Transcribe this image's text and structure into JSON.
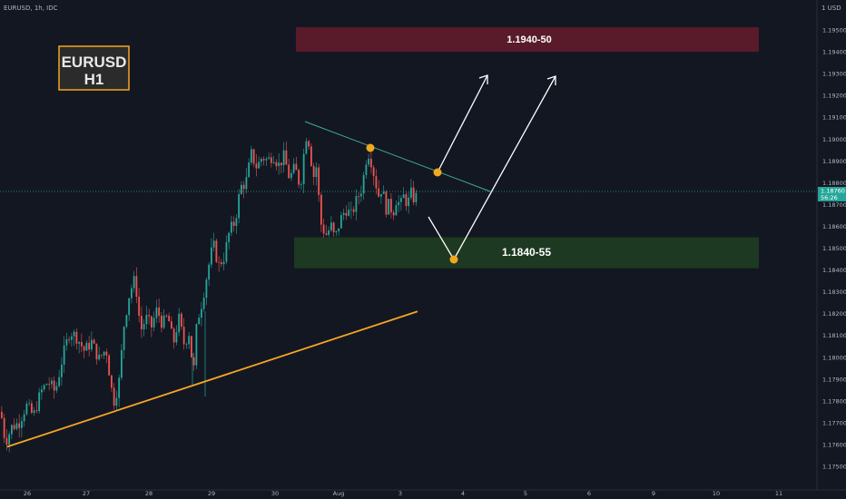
{
  "header": {
    "symbol_line": "EURUSD, 1h, IDC",
    "currency": "1 USD"
  },
  "title_box": {
    "line1": "EURUSD",
    "line2": "H1"
  },
  "colors": {
    "background": "#131722",
    "up_candle": "#26a69a",
    "down_candle": "#ef5350",
    "resistance_zone": "#5d1a2b",
    "support_zone": "#1e3b22",
    "trendline_orange": "#f5a623",
    "trendline_teal": "#3fae8e",
    "marker": "#f0a81c",
    "arrow": "#ffffff",
    "price_tag": "#26a69a"
  },
  "chart_data": {
    "type": "candlestick",
    "symbol": "EURUSD",
    "timeframe": "1h",
    "source": "IDC",
    "x_tick_labels": [
      "26",
      "27",
      "28",
      "29",
      "30",
      "Aug",
      "3",
      "4",
      "5",
      "6",
      "9",
      "10",
      "11"
    ],
    "y_tick_labels": [
      "1.19500",
      "1.19400",
      "1.19300",
      "1.19200",
      "1.19100",
      "1.19000",
      "1.18900",
      "1.18800",
      "1.18700",
      "1.18600",
      "1.18500",
      "1.18400",
      "1.18300",
      "1.18200",
      "1.18100",
      "1.18000",
      "1.17900",
      "1.17800",
      "1.17700",
      "1.17600",
      "1.17500"
    ],
    "ylim": [
      1.1744,
      1.1963
    ],
    "current_price": {
      "value": "1.18760",
      "countdown": "56:26"
    },
    "zones": [
      {
        "label": "1.1940-50",
        "low": 1.194,
        "high": 1.195,
        "type": "resistance"
      },
      {
        "label": "1.1840-55",
        "low": 1.1842,
        "high": 1.1855,
        "type": "support"
      }
    ],
    "candle_path": [
      [
        0,
        1.1775
      ],
      [
        5,
        1.1761
      ],
      [
        12,
        1.1768
      ],
      [
        20,
        1.177
      ],
      [
        28,
        1.1778
      ],
      [
        36,
        1.1773
      ],
      [
        44,
        1.1784
      ],
      [
        52,
        1.1789
      ],
      [
        60,
        1.1784
      ],
      [
        68,
        1.18
      ],
      [
        76,
        1.1812
      ],
      [
        84,
        1.1809
      ],
      [
        92,
        1.1803
      ],
      [
        100,
        1.1807
      ],
      [
        108,
        1.1799
      ],
      [
        116,
        1.1804
      ],
      [
        124,
        1.1779
      ],
      [
        130,
        1.1788
      ],
      [
        136,
        1.1816
      ],
      [
        142,
        1.183
      ],
      [
        148,
        1.1836
      ],
      [
        154,
        1.1812
      ],
      [
        160,
        1.1818
      ],
      [
        166,
        1.1814
      ],
      [
        172,
        1.1822
      ],
      [
        178,
        1.1815
      ],
      [
        184,
        1.1819
      ],
      [
        190,
        1.1806
      ],
      [
        196,
        1.1818
      ],
      [
        202,
        1.1806
      ],
      [
        208,
        1.1812
      ],
      [
        212,
        1.179
      ],
      [
        216,
        1.1816
      ],
      [
        222,
        1.1826
      ],
      [
        228,
        1.184
      ],
      [
        234,
        1.1852
      ],
      [
        240,
        1.1842
      ],
      [
        246,
        1.1846
      ],
      [
        252,
        1.1858
      ],
      [
        258,
        1.1862
      ],
      [
        264,
        1.1878
      ],
      [
        270,
        1.188
      ],
      [
        276,
        1.1893
      ],
      [
        282,
        1.1887
      ],
      [
        288,
        1.1892
      ],
      [
        294,
        1.189
      ],
      [
        300,
        1.1893
      ],
      [
        306,
        1.1888
      ],
      [
        312,
        1.1892
      ],
      [
        318,
        1.1882
      ],
      [
        324,
        1.1887
      ],
      [
        330,
        1.1878
      ],
      [
        336,
        1.1902
      ],
      [
        340,
        1.1898
      ],
      [
        344,
        1.1882
      ],
      [
        348,
        1.1888
      ],
      [
        352,
        1.1862
      ],
      [
        358,
        1.1856
      ],
      [
        364,
        1.186
      ],
      [
        368,
        1.1854
      ],
      [
        374,
        1.1863
      ],
      [
        380,
        1.1868
      ],
      [
        386,
        1.1865
      ],
      [
        392,
        1.1872
      ],
      [
        398,
        1.1878
      ],
      [
        404,
        1.1895
      ],
      [
        408,
        1.189
      ],
      [
        412,
        1.1882
      ],
      [
        416,
        1.1874
      ],
      [
        420,
        1.1878
      ],
      [
        424,
        1.1868
      ],
      [
        428,
        1.187
      ],
      [
        432,
        1.1866
      ],
      [
        436,
        1.1873
      ],
      [
        440,
        1.1869
      ],
      [
        444,
        1.1874
      ],
      [
        448,
        1.187
      ],
      [
        452,
        1.1875
      ],
      [
        456,
        1.1872
      ],
      [
        460,
        1.1876
      ]
    ],
    "trendline_support": {
      "from": [
        0,
        1.1759
      ],
      "to": [
        460,
        1.1821
      ]
    },
    "trendline_resistance": {
      "from": [
        336,
        1.1908
      ],
      "to": [
        540,
        1.1876
      ]
    }
  }
}
